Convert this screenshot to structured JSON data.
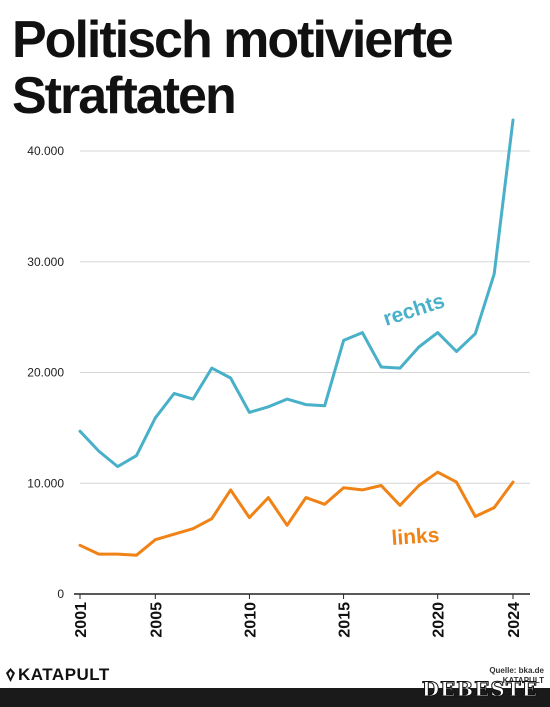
{
  "title_line1": "Politisch motivierte",
  "title_line2": "Straftaten",
  "logo_text": "KATAPULT",
  "source_text": "Quelle: bka.de",
  "credit_text": "KATAPULT",
  "watermark_text": "DEBESTE",
  "colors": {
    "rechts": "#48b0c8",
    "links": "#f08216",
    "grid": "#d6d6d6",
    "axis": "#222222"
  },
  "chart_data": {
    "type": "line",
    "title": "Politisch motivierte Straftaten",
    "xlabel": "",
    "ylabel": "",
    "x": [
      2001,
      2002,
      2003,
      2004,
      2005,
      2006,
      2007,
      2008,
      2009,
      2010,
      2011,
      2012,
      2013,
      2014,
      2015,
      2016,
      2017,
      2018,
      2019,
      2020,
      2021,
      2022,
      2023,
      2024
    ],
    "xticks": [
      "2001",
      "2005",
      "2010",
      "2015",
      "2020",
      "2024"
    ],
    "xlim": [
      2001,
      2024
    ],
    "ylim": [
      0,
      40000
    ],
    "yticks": [
      {
        "value": 0,
        "label": "0"
      },
      {
        "value": 10000,
        "label": "10.000"
      },
      {
        "value": 20000,
        "label": "20.000"
      },
      {
        "value": 30000,
        "label": "30.000"
      },
      {
        "value": 40000,
        "label": "40.000"
      }
    ],
    "grid": true,
    "series": [
      {
        "name": "rechts",
        "values": [
          14700,
          12900,
          11500,
          12500,
          15900,
          18100,
          17600,
          20400,
          19500,
          16400,
          16900,
          17600,
          17100,
          17000,
          22900,
          23600,
          20500,
          20400,
          22300,
          23600,
          21900,
          23500,
          28900,
          42800
        ]
      },
      {
        "name": "links",
        "values": [
          4400,
          3600,
          3600,
          3500,
          4900,
          5400,
          5900,
          6800,
          9400,
          6900,
          8700,
          6200,
          8700,
          8100,
          9600,
          9400,
          9800,
          8000,
          9800,
          11000,
          10100,
          7000,
          7800,
          10100
        ]
      }
    ]
  }
}
